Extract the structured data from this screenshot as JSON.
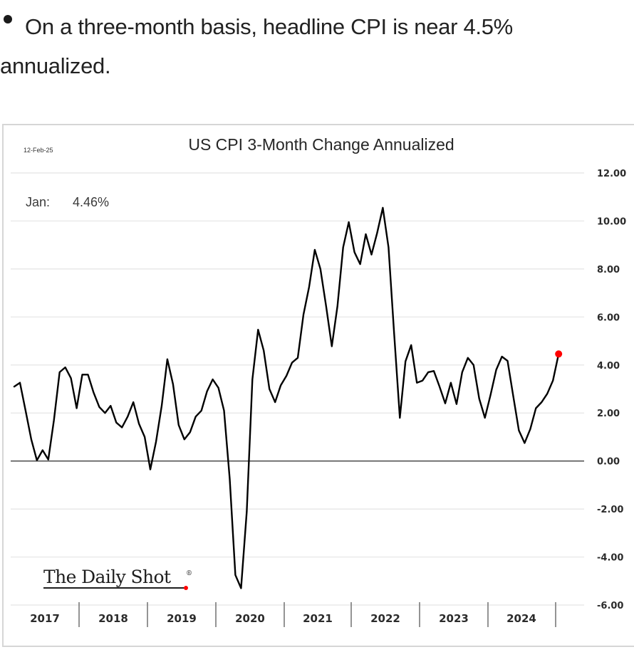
{
  "intro": {
    "bullet_line1": "On a three-month basis, headline CPI is near 4.5%",
    "bullet_line2": "annualized."
  },
  "chart_data": {
    "type": "line",
    "title": "US CPI 3-Month Change Annualized",
    "date_label": "12-Feb-25",
    "annotation": {
      "label": "Jan:",
      "value": "4.46%"
    },
    "source_logo": "The Daily Shot",
    "source_logo_mark": "®",
    "xlabel": "",
    "ylabel": "",
    "ylim": [
      -6,
      12
    ],
    "y_ticks": [
      12,
      10,
      8,
      6,
      4,
      2,
      0,
      -2,
      -4,
      -6
    ],
    "y_tick_labels": [
      "12.00",
      "10.00",
      "8.00",
      "6.00",
      "4.00",
      "2.00",
      "0.00",
      "-2.00",
      "-4.00",
      "-6.00"
    ],
    "x_tick_labels": [
      "2017",
      "2018",
      "2019",
      "2020",
      "2021",
      "2022",
      "2023",
      "2024"
    ],
    "x_start": "Jan 2017",
    "x_end": "Jan 2025",
    "frequency": "monthly",
    "grid": true,
    "y_axis_position": "right",
    "series": [
      {
        "name": "US CPI 3-Month Change Annualized",
        "color": "#000000",
        "last_point_marker_color": "#ff0000",
        "values": [
          3.1,
          3.26,
          2.1,
          0.9,
          0.03,
          0.45,
          0.06,
          1.7,
          3.7,
          3.9,
          3.45,
          2.2,
          3.6,
          3.6,
          2.85,
          2.25,
          2.0,
          2.3,
          1.6,
          1.4,
          1.85,
          2.45,
          1.55,
          1.0,
          -0.35,
          0.8,
          2.3,
          4.24,
          3.2,
          1.5,
          0.9,
          1.2,
          1.85,
          2.1,
          2.9,
          3.4,
          3.05,
          2.1,
          -0.75,
          -4.75,
          -5.3,
          -2.1,
          3.4,
          5.47,
          4.6,
          3.0,
          2.45,
          3.15,
          3.55,
          4.1,
          4.3,
          6.1,
          7.25,
          8.8,
          8.0,
          6.45,
          4.78,
          6.45,
          8.9,
          9.95,
          8.7,
          8.2,
          9.45,
          8.6,
          9.5,
          10.55,
          8.9,
          5.3,
          1.8,
          4.15,
          4.83,
          3.26,
          3.35,
          3.7,
          3.75,
          3.1,
          2.4,
          3.26,
          2.37,
          3.7,
          4.3,
          4.0,
          2.6,
          1.8,
          2.75,
          3.8,
          4.35,
          4.17,
          2.7,
          1.27,
          0.75,
          1.33,
          2.2,
          2.45,
          2.8,
          3.35,
          4.46
        ]
      }
    ]
  }
}
